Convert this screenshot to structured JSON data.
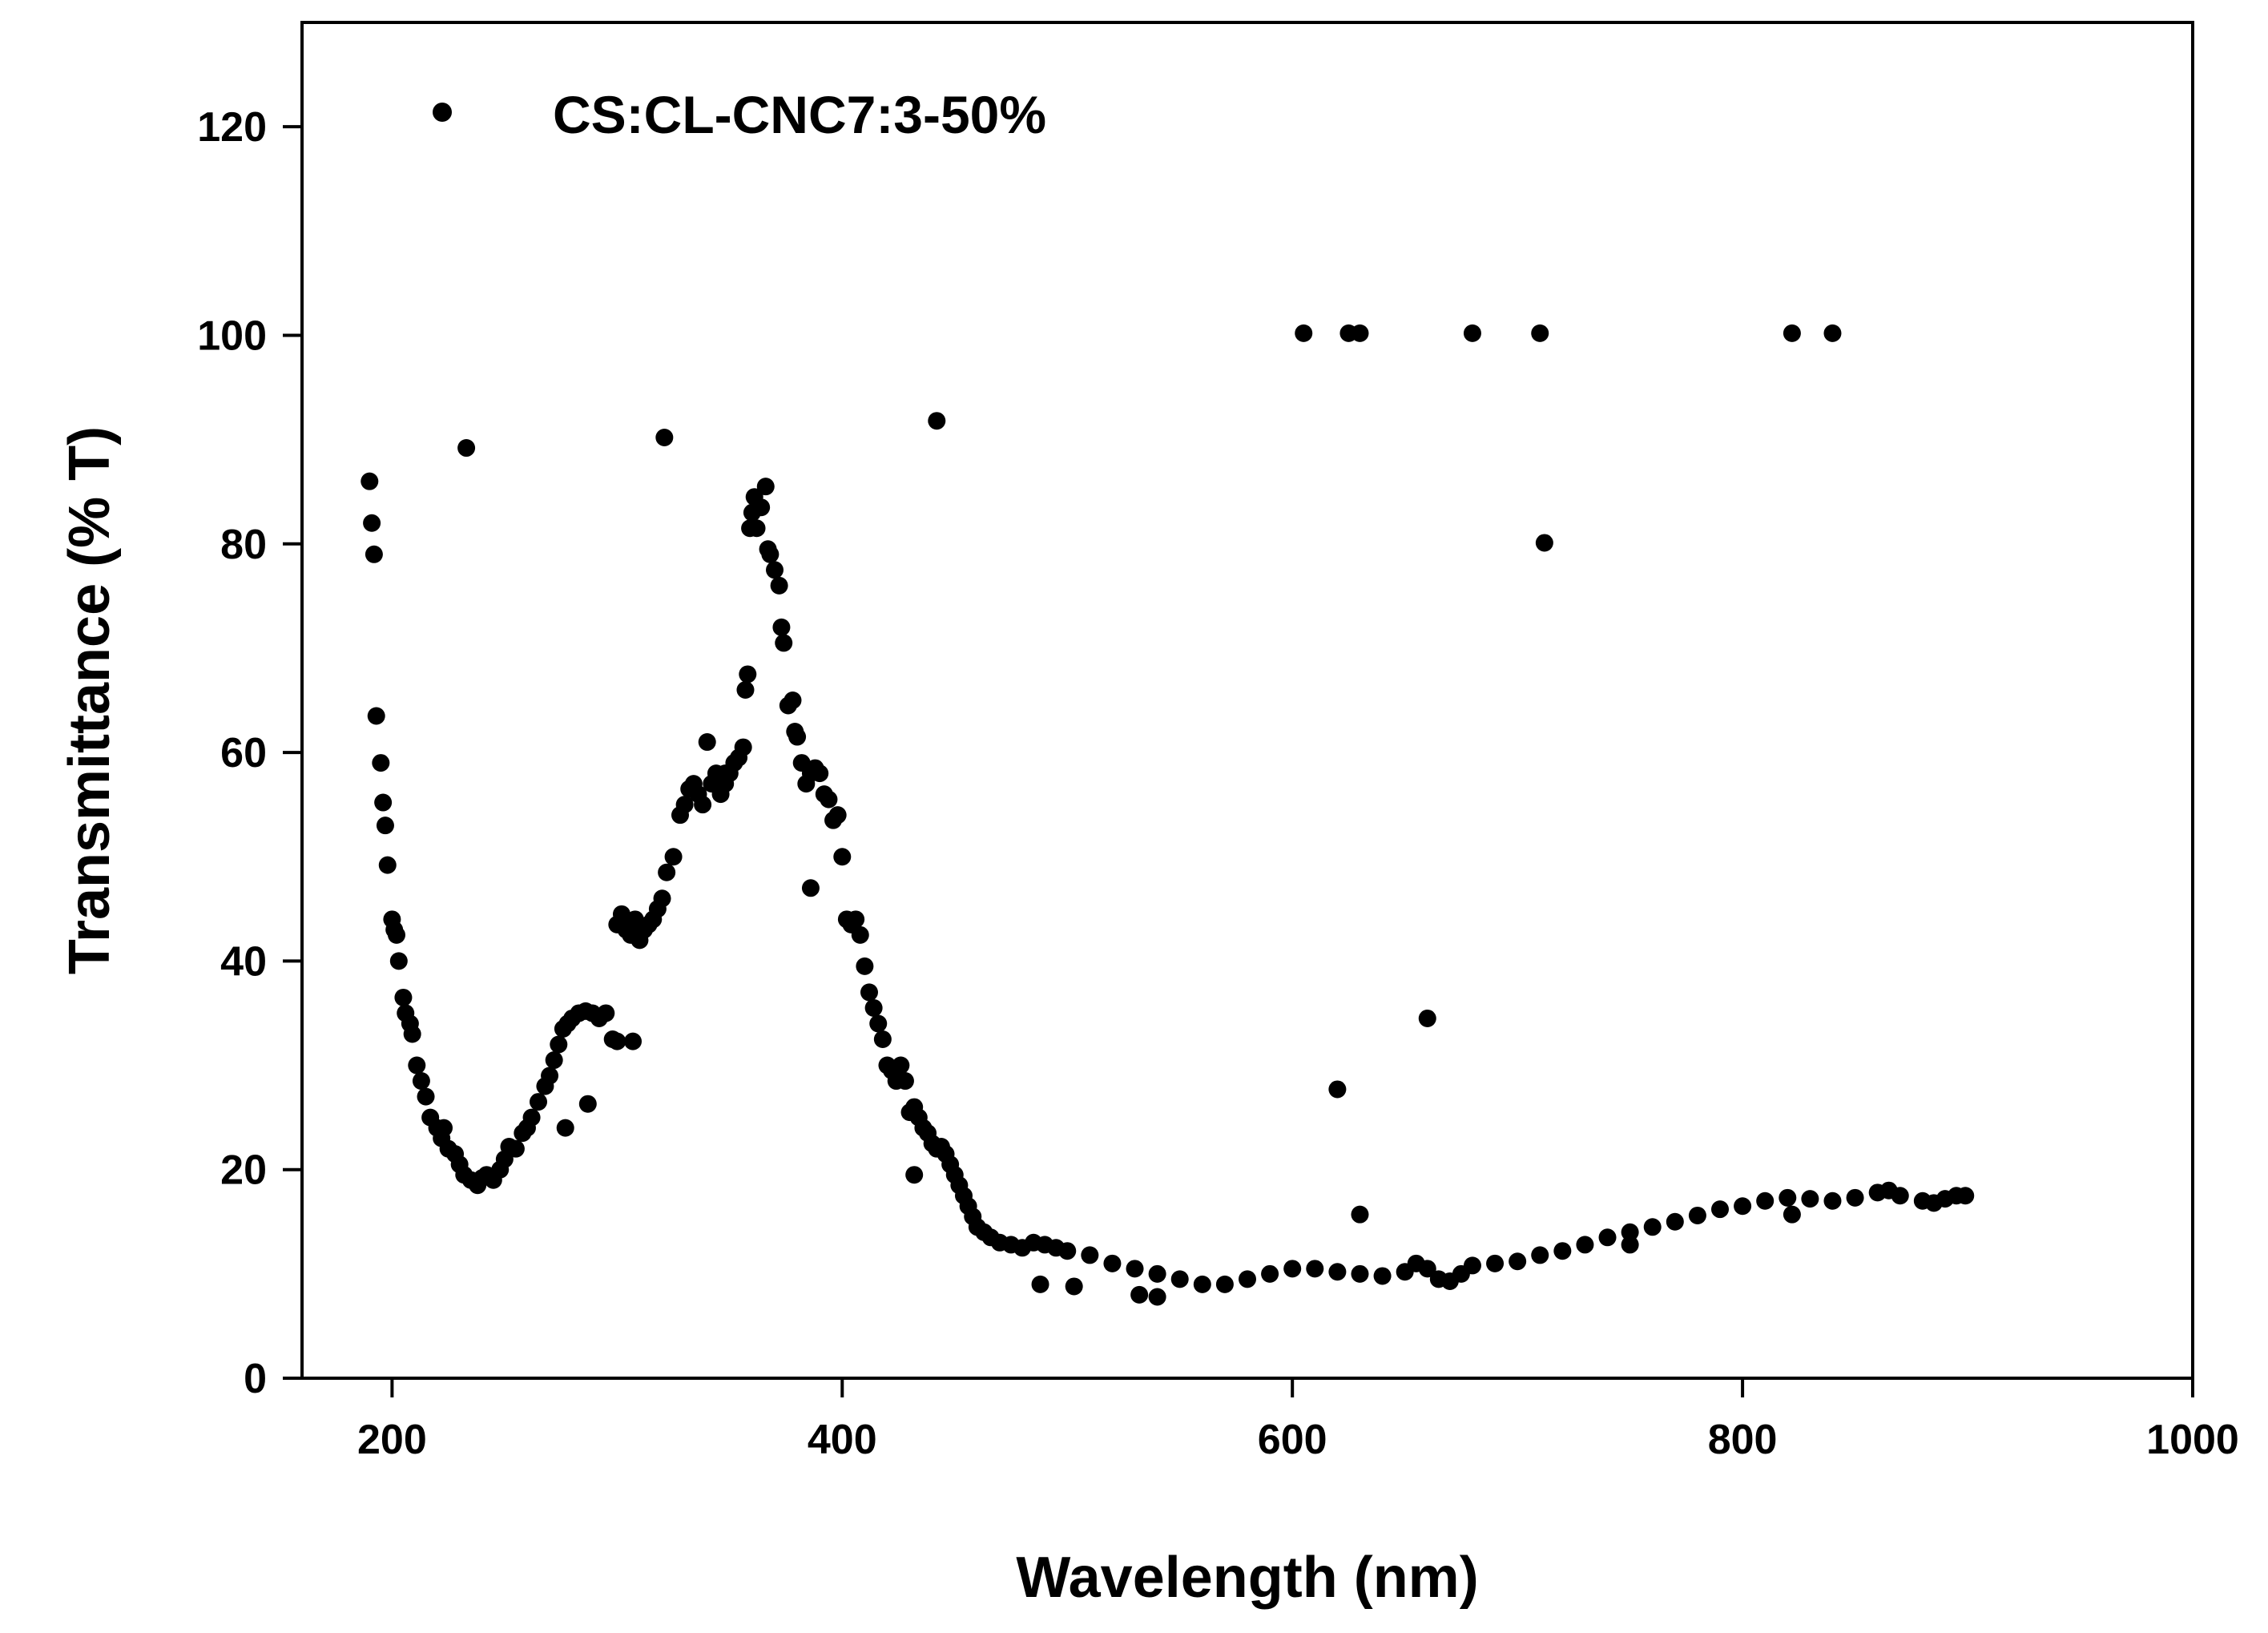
{
  "chart_data": {
    "type": "scatter",
    "title": "",
    "xlabel": "Wavelength (nm)",
    "ylabel": "Transmittance (% T)",
    "xlim": [
      160,
      1000
    ],
    "ylim": [
      0,
      130
    ],
    "xticks": [
      200,
      400,
      600,
      800,
      1000
    ],
    "yticks": [
      0,
      20,
      40,
      60,
      80,
      100,
      120
    ],
    "grid": false,
    "legend_position": "top-left",
    "marker_color": "#000000",
    "series": [
      {
        "name": "CS:CL-CNC7:3-50%",
        "points": [
          [
            190,
            86
          ],
          [
            191,
            82
          ],
          [
            192,
            79
          ],
          [
            193,
            63.5
          ],
          [
            195,
            59
          ],
          [
            196,
            55.2
          ],
          [
            197,
            53
          ],
          [
            198,
            49.2
          ],
          [
            200,
            44
          ],
          [
            201,
            43
          ],
          [
            202,
            42.5
          ],
          [
            203,
            40
          ],
          [
            205,
            36.5
          ],
          [
            206,
            35
          ],
          [
            208,
            34
          ],
          [
            209,
            33
          ],
          [
            211,
            30
          ],
          [
            213,
            28.5
          ],
          [
            215,
            27
          ],
          [
            217,
            25
          ],
          [
            220,
            24
          ],
          [
            222,
            23
          ],
          [
            225,
            22
          ],
          [
            228,
            21.5
          ],
          [
            230,
            20.5
          ],
          [
            232,
            19.5
          ],
          [
            235,
            19
          ],
          [
            238,
            18.5
          ],
          [
            240,
            19.2
          ],
          [
            242,
            19.5
          ],
          [
            245,
            19
          ],
          [
            248,
            20
          ],
          [
            250,
            21
          ],
          [
            252,
            22.2
          ],
          [
            255,
            22
          ],
          [
            258,
            23.5
          ],
          [
            260,
            24
          ],
          [
            262,
            25
          ],
          [
            265,
            26.5
          ],
          [
            268,
            28
          ],
          [
            270,
            29
          ],
          [
            272,
            30.5
          ],
          [
            274,
            32
          ],
          [
            276,
            33.5
          ],
          [
            278,
            34
          ],
          [
            280,
            34.5
          ],
          [
            283,
            35
          ],
          [
            286,
            35.2
          ],
          [
            289,
            35
          ],
          [
            292,
            34.5
          ],
          [
            295,
            35
          ],
          [
            298,
            32.5
          ],
          [
            300,
            43.5
          ],
          [
            302,
            44.5
          ],
          [
            304,
            43
          ],
          [
            306,
            42.5
          ],
          [
            308,
            44
          ],
          [
            310,
            42
          ],
          [
            312,
            43
          ],
          [
            314,
            43.5
          ],
          [
            316,
            44
          ],
          [
            318,
            45
          ],
          [
            320,
            46
          ],
          [
            322,
            48.5
          ],
          [
            325,
            50
          ],
          [
            328,
            54
          ],
          [
            330,
            55
          ],
          [
            332,
            56.5
          ],
          [
            334,
            57
          ],
          [
            336,
            56
          ],
          [
            338,
            55
          ],
          [
            340,
            61
          ],
          [
            342,
            57
          ],
          [
            344,
            58
          ],
          [
            346,
            56
          ],
          [
            348,
            57
          ],
          [
            350,
            58
          ],
          [
            352,
            59
          ],
          [
            354,
            59.5
          ],
          [
            356,
            60.5
          ],
          [
            357,
            66
          ],
          [
            358,
            67.5
          ],
          [
            359,
            81.5
          ],
          [
            360,
            83
          ],
          [
            361,
            84.5
          ],
          [
            362,
            81.5
          ],
          [
            364,
            83.5
          ],
          [
            366,
            85.5
          ],
          [
            367,
            79.5
          ],
          [
            368,
            79
          ],
          [
            370,
            77.5
          ],
          [
            372,
            76
          ],
          [
            373,
            72
          ],
          [
            374,
            70.5
          ],
          [
            376,
            64.5
          ],
          [
            378,
            65
          ],
          [
            379,
            62
          ],
          [
            380,
            61.5
          ],
          [
            382,
            59
          ],
          [
            384,
            57
          ],
          [
            386,
            58
          ],
          [
            388,
            58.5
          ],
          [
            390,
            58
          ],
          [
            392,
            56
          ],
          [
            394,
            55.5
          ],
          [
            396,
            53.5
          ],
          [
            398,
            54
          ],
          [
            400,
            50
          ],
          [
            402,
            44
          ],
          [
            404,
            43.5
          ],
          [
            406,
            44
          ],
          [
            408,
            42.5
          ],
          [
            410,
            39.5
          ],
          [
            412,
            37
          ],
          [
            414,
            35.5
          ],
          [
            416,
            34
          ],
          [
            418,
            32.5
          ],
          [
            420,
            30
          ],
          [
            422,
            29.5
          ],
          [
            424,
            28.5
          ],
          [
            426,
            30
          ],
          [
            428,
            28.5
          ],
          [
            430,
            25.5
          ],
          [
            432,
            26
          ],
          [
            434,
            25
          ],
          [
            436,
            24
          ],
          [
            438,
            23.5
          ],
          [
            440,
            22.5
          ],
          [
            442,
            22
          ],
          [
            444,
            22.2
          ],
          [
            446,
            21.5
          ],
          [
            448,
            20.5
          ],
          [
            450,
            19.5
          ],
          [
            452,
            18.5
          ],
          [
            454,
            17.5
          ],
          [
            456,
            16.5
          ],
          [
            458,
            15.5
          ],
          [
            460,
            14.5
          ],
          [
            463,
            14
          ],
          [
            466,
            13.5
          ],
          [
            470,
            13
          ],
          [
            475,
            12.8
          ],
          [
            480,
            12.5
          ],
          [
            485,
            13
          ],
          [
            490,
            12.8
          ],
          [
            495,
            12.5
          ],
          [
            500,
            12.2
          ],
          [
            510,
            11.8
          ],
          [
            520,
            11
          ],
          [
            530,
            10.5
          ],
          [
            540,
            10
          ],
          [
            550,
            9.5
          ],
          [
            560,
            9
          ],
          [
            570,
            9
          ],
          [
            580,
            9.5
          ],
          [
            590,
            10
          ],
          [
            600,
            10.5
          ],
          [
            610,
            10.5
          ],
          [
            620,
            10.2
          ],
          [
            630,
            10
          ],
          [
            640,
            9.8
          ],
          [
            650,
            10.2
          ],
          [
            655,
            11
          ],
          [
            660,
            10.5
          ],
          [
            665,
            9.5
          ],
          [
            670,
            9.3
          ],
          [
            675,
            10
          ],
          [
            680,
            10.8
          ],
          [
            690,
            11
          ],
          [
            700,
            11.2
          ],
          [
            710,
            11.8
          ],
          [
            720,
            12.2
          ],
          [
            730,
            12.8
          ],
          [
            740,
            13.5
          ],
          [
            750,
            14
          ],
          [
            760,
            14.5
          ],
          [
            770,
            15
          ],
          [
            780,
            15.6
          ],
          [
            790,
            16.2
          ],
          [
            800,
            16.5
          ],
          [
            810,
            17
          ],
          [
            820,
            17.3
          ],
          [
            830,
            17.2
          ],
          [
            840,
            17
          ],
          [
            850,
            17.3
          ],
          [
            860,
            17.8
          ],
          [
            865,
            18
          ],
          [
            870,
            17.5
          ],
          [
            880,
            17
          ],
          [
            885,
            16.8
          ],
          [
            890,
            17.2
          ],
          [
            895,
            17.5
          ],
          [
            899,
            17.5
          ],
          [
            223,
            24
          ],
          [
            233,
            89.2
          ],
          [
            277,
            24
          ],
          [
            287,
            26.3
          ],
          [
            300,
            32.3
          ],
          [
            307,
            32.3
          ],
          [
            321,
            90.2
          ],
          [
            348,
            58
          ],
          [
            386,
            47
          ],
          [
            432,
            19.5
          ],
          [
            442,
            91.8
          ],
          [
            488,
            9
          ],
          [
            503,
            8.8
          ],
          [
            532,
            8
          ],
          [
            540,
            7.8
          ],
          [
            605,
            100.2
          ],
          [
            620,
            27.7
          ],
          [
            625,
            100.2
          ],
          [
            630,
            100.2
          ],
          [
            630,
            15.7
          ],
          [
            660,
            34.5
          ],
          [
            680,
            100.2
          ],
          [
            710,
            100.2
          ],
          [
            712,
            80.1
          ],
          [
            750,
            12.8
          ],
          [
            822,
            15.7
          ],
          [
            822,
            100.2
          ],
          [
            840,
            100.2
          ]
        ]
      }
    ]
  }
}
